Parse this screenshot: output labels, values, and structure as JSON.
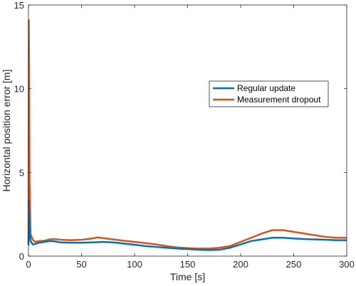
{
  "chart_data": {
    "type": "line",
    "title": "",
    "xlabel": "Time [s]",
    "ylabel": "Horizontal position error [m]",
    "xlim": [
      0,
      300
    ],
    "ylim": [
      0,
      15
    ],
    "xticks": [
      0,
      50,
      100,
      150,
      200,
      250,
      300
    ],
    "yticks": [
      0,
      5,
      10,
      15
    ],
    "grid": false,
    "box": true,
    "legend_position": "upper-right-center",
    "series": [
      {
        "name": "Regular update",
        "color": "#0072BD",
        "x": [
          0,
          0.5,
          1,
          2,
          4,
          6,
          10,
          15,
          20,
          25,
          30,
          40,
          50,
          60,
          70,
          80,
          90,
          100,
          110,
          120,
          130,
          140,
          150,
          160,
          170,
          180,
          190,
          200,
          210,
          220,
          230,
          240,
          250,
          260,
          270,
          280,
          290,
          300
        ],
        "y": [
          0.65,
          3.3,
          1.6,
          0.9,
          0.7,
          0.72,
          0.8,
          0.85,
          0.9,
          0.88,
          0.82,
          0.8,
          0.8,
          0.82,
          0.85,
          0.82,
          0.75,
          0.68,
          0.6,
          0.55,
          0.5,
          0.45,
          0.42,
          0.38,
          0.36,
          0.38,
          0.5,
          0.7,
          0.9,
          1.0,
          1.1,
          1.1,
          1.05,
          1.02,
          1.0,
          0.98,
          0.95,
          0.95
        ]
      },
      {
        "name": "Measurement dropout",
        "color": "#D95319",
        "x": [
          0,
          0.3,
          0.7,
          1,
          2,
          4,
          6,
          10,
          15,
          20,
          25,
          30,
          40,
          50,
          60,
          65,
          70,
          80,
          90,
          100,
          110,
          120,
          130,
          140,
          150,
          160,
          170,
          180,
          190,
          200,
          210,
          220,
          230,
          240,
          250,
          260,
          270,
          280,
          290,
          300
        ],
        "y": [
          0.7,
          14.1,
          10.5,
          4.5,
          1.3,
          1.0,
          0.85,
          0.9,
          0.92,
          1.0,
          1.02,
          0.98,
          0.95,
          0.98,
          1.05,
          1.12,
          1.08,
          1.0,
          0.92,
          0.85,
          0.78,
          0.7,
          0.6,
          0.52,
          0.48,
          0.45,
          0.45,
          0.5,
          0.6,
          0.85,
          1.1,
          1.35,
          1.55,
          1.55,
          1.45,
          1.35,
          1.25,
          1.15,
          1.1,
          1.1
        ]
      }
    ]
  }
}
